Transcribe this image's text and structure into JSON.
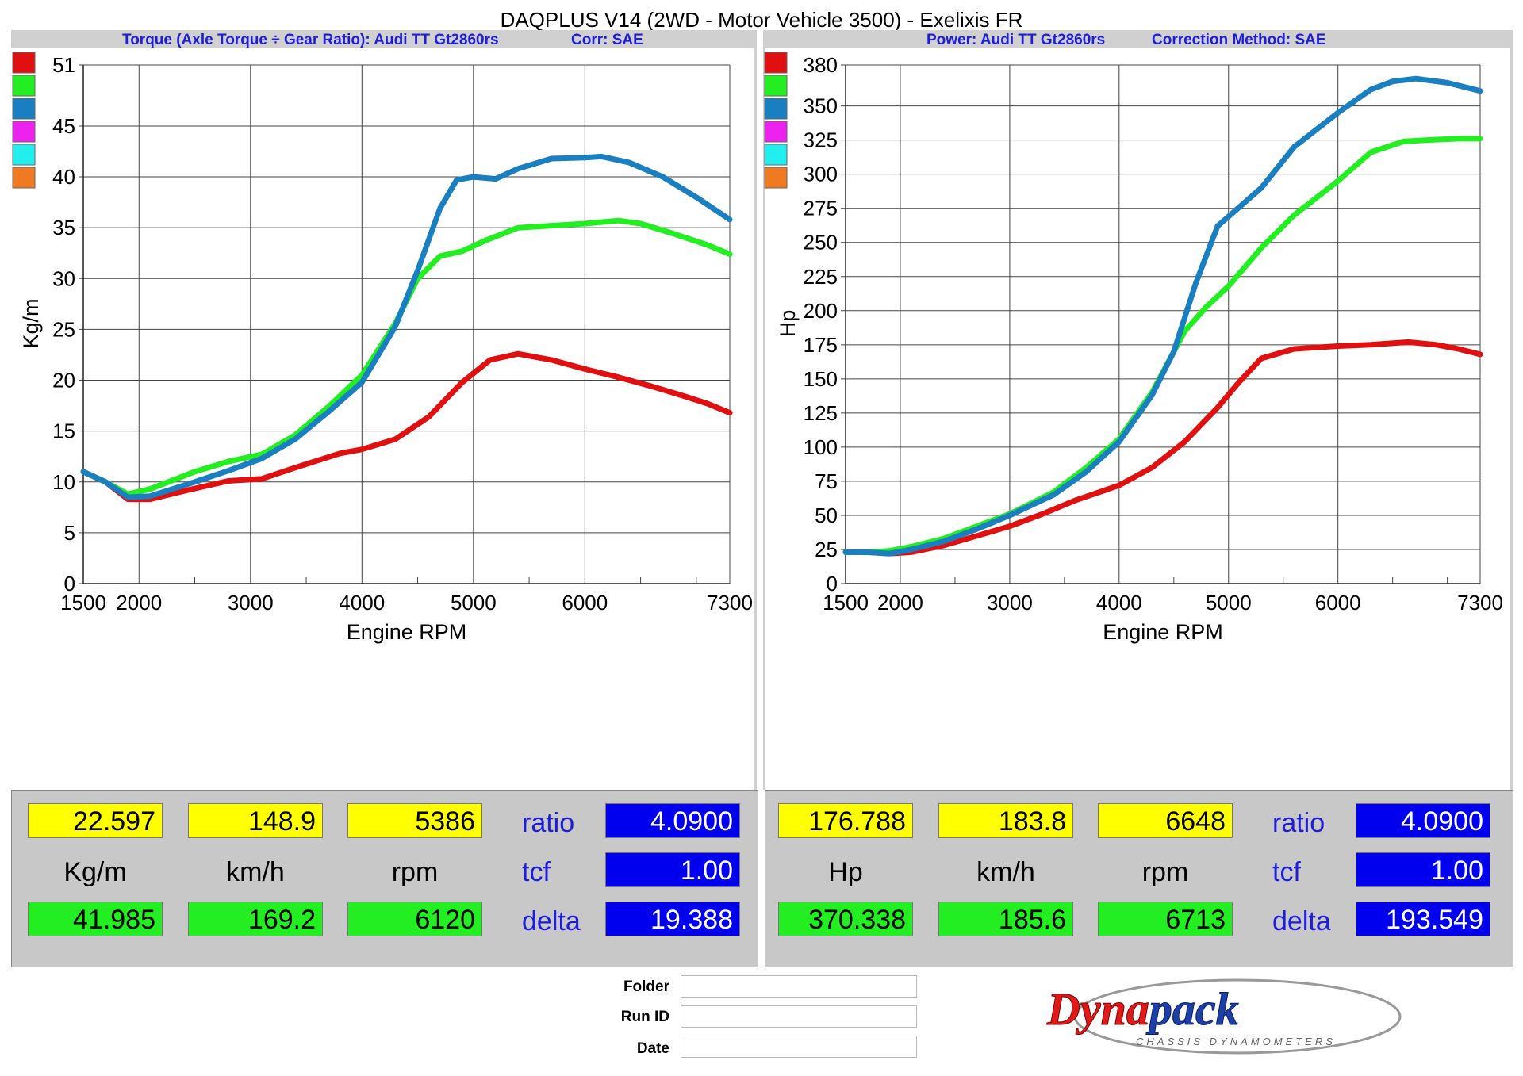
{
  "app_title": "DAQPLUS V14 (2WD - Motor Vehicle 3500) - Exelixis FR",
  "panels": {
    "left": {
      "header_a": "Torque (Axle Torque ÷ Gear Ratio): Audi TT Gt2860rs",
      "header_b": "Corr: SAE"
    },
    "right": {
      "header_a": "Power: Audi TT Gt2860rs",
      "header_b": "Correction Method: SAE"
    }
  },
  "colors": {
    "red": "#e01010",
    "green": "#22ee22",
    "blue": "#1a7fc0",
    "magenta": "#ee22ee",
    "cyan": "#22eeee",
    "orange": "#ee7a22"
  },
  "swatch_order": [
    "red",
    "green",
    "blue",
    "magenta",
    "cyan",
    "orange"
  ],
  "chart_data": [
    {
      "type": "line",
      "title": "Torque (Axle Torque ÷ Gear Ratio): Audi TT Gt2860rs",
      "xlabel": "Engine RPM",
      "ylabel": "Kg/m",
      "xlim": [
        1500,
        7300
      ],
      "ylim": [
        0,
        51
      ],
      "x_ticks": [
        1500,
        2000,
        3000,
        4000,
        5000,
        6000,
        7300
      ],
      "y_ticks": [
        0,
        5,
        10,
        15,
        20,
        25,
        30,
        35,
        40,
        45,
        51
      ],
      "grid": true,
      "series": [
        {
          "color": "red",
          "points": [
            [
              1500,
              11
            ],
            [
              1700,
              10
            ],
            [
              1900,
              8.3
            ],
            [
              2100,
              8.3
            ],
            [
              2400,
              9.1
            ],
            [
              2800,
              10.1
            ],
            [
              3100,
              10.3
            ],
            [
              3400,
              11.4
            ],
            [
              3800,
              12.8
            ],
            [
              4000,
              13.2
            ],
            [
              4300,
              14.2
            ],
            [
              4600,
              16.4
            ],
            [
              4900,
              19.8
            ],
            [
              5150,
              22
            ],
            [
              5400,
              22.6
            ],
            [
              5700,
              22
            ],
            [
              6000,
              21.1
            ],
            [
              6300,
              20.3
            ],
            [
              6600,
              19.4
            ],
            [
              6900,
              18.4
            ],
            [
              7100,
              17.7
            ],
            [
              7300,
              16.8
            ]
          ]
        },
        {
          "color": "green",
          "points": [
            [
              1500,
              11
            ],
            [
              1700,
              10
            ],
            [
              1900,
              8.8
            ],
            [
              2100,
              9.3
            ],
            [
              2500,
              11
            ],
            [
              2800,
              12
            ],
            [
              3100,
              12.7
            ],
            [
              3400,
              14.6
            ],
            [
              3700,
              17.4
            ],
            [
              4000,
              20.5
            ],
            [
              4300,
              25.6
            ],
            [
              4500,
              30
            ],
            [
              4700,
              32.2
            ],
            [
              4900,
              32.7
            ],
            [
              5100,
              33.7
            ],
            [
              5400,
              35
            ],
            [
              5700,
              35.2
            ],
            [
              6000,
              35.4
            ],
            [
              6300,
              35.7
            ],
            [
              6500,
              35.4
            ],
            [
              6800,
              34.4
            ],
            [
              7100,
              33.3
            ],
            [
              7300,
              32.4
            ]
          ]
        },
        {
          "color": "blue",
          "points": [
            [
              1500,
              11
            ],
            [
              1700,
              10
            ],
            [
              1900,
              8.5
            ],
            [
              2100,
              8.6
            ],
            [
              2500,
              10
            ],
            [
              2800,
              11.1
            ],
            [
              3100,
              12.3
            ],
            [
              3400,
              14.2
            ],
            [
              3700,
              16.9
            ],
            [
              4000,
              19.8
            ],
            [
              4300,
              25.3
            ],
            [
              4500,
              30.8
            ],
            [
              4700,
              36.9
            ],
            [
              4850,
              39.7
            ],
            [
              5000,
              40
            ],
            [
              5200,
              39.8
            ],
            [
              5400,
              40.8
            ],
            [
              5700,
              41.8
            ],
            [
              6000,
              41.9
            ],
            [
              6150,
              42
            ],
            [
              6400,
              41.4
            ],
            [
              6700,
              40
            ],
            [
              7000,
              38
            ],
            [
              7300,
              35.8
            ]
          ]
        }
      ]
    },
    {
      "type": "line",
      "title": "Power: Audi TT Gt2860rs",
      "xlabel": "Engine RPM",
      "ylabel": "Hp",
      "xlim": [
        1500,
        7300
      ],
      "ylim": [
        0,
        380
      ],
      "x_ticks": [
        1500,
        2000,
        3000,
        4000,
        5000,
        6000,
        7300
      ],
      "y_ticks": [
        0,
        25,
        50,
        75,
        100,
        125,
        150,
        175,
        200,
        225,
        250,
        275,
        300,
        325,
        350,
        380
      ],
      "grid": true,
      "series": [
        {
          "color": "red",
          "points": [
            [
              1500,
              23
            ],
            [
              1700,
              23
            ],
            [
              1900,
              22
            ],
            [
              2100,
              23
            ],
            [
              2400,
              28
            ],
            [
              2700,
              35
            ],
            [
              3000,
              42
            ],
            [
              3300,
              51
            ],
            [
              3600,
              61
            ],
            [
              4000,
              72
            ],
            [
              4300,
              85
            ],
            [
              4600,
              104
            ],
            [
              4900,
              129
            ],
            [
              5100,
              148
            ],
            [
              5300,
              165
            ],
            [
              5600,
              172
            ],
            [
              6000,
              174
            ],
            [
              6300,
              175
            ],
            [
              6648,
              177
            ],
            [
              6900,
              175
            ],
            [
              7100,
              172
            ],
            [
              7300,
              168
            ]
          ]
        },
        {
          "color": "green",
          "points": [
            [
              1500,
              23
            ],
            [
              1700,
              23
            ],
            [
              1900,
              24
            ],
            [
              2100,
              27
            ],
            [
              2400,
              33
            ],
            [
              2700,
              42
            ],
            [
              3000,
              51
            ],
            [
              3400,
              67
            ],
            [
              3700,
              85
            ],
            [
              4000,
              106
            ],
            [
              4300,
              140
            ],
            [
              4600,
              185
            ],
            [
              4800,
              203
            ],
            [
              5000,
              218
            ],
            [
              5300,
              246
            ],
            [
              5600,
              270
            ],
            [
              6000,
              295
            ],
            [
              6300,
              316
            ],
            [
              6600,
              324
            ],
            [
              6800,
              325
            ],
            [
              7100,
              326
            ],
            [
              7300,
              326
            ]
          ]
        },
        {
          "color": "blue",
          "points": [
            [
              1500,
              23
            ],
            [
              1700,
              23
            ],
            [
              1900,
              22
            ],
            [
              2100,
              25
            ],
            [
              2400,
              31
            ],
            [
              2700,
              40
            ],
            [
              3000,
              50
            ],
            [
              3400,
              65
            ],
            [
              3700,
              82
            ],
            [
              4000,
              104
            ],
            [
              4300,
              138
            ],
            [
              4500,
              170
            ],
            [
              4700,
              220
            ],
            [
              4900,
              262
            ],
            [
              5100,
              276
            ],
            [
              5300,
              290
            ],
            [
              5600,
              320
            ],
            [
              6000,
              345
            ],
            [
              6300,
              362
            ],
            [
              6500,
              368
            ],
            [
              6713,
              370
            ],
            [
              7000,
              367
            ],
            [
              7300,
              361
            ]
          ]
        }
      ]
    }
  ],
  "readouts": {
    "left": {
      "yellow": [
        "22.597",
        "148.9",
        "5386"
      ],
      "units": [
        "Kg/m",
        "km/h",
        "rpm"
      ],
      "green": [
        "41.985",
        "169.2",
        "6120"
      ],
      "labels": [
        "ratio",
        "tcf",
        "delta"
      ],
      "blue": [
        "4.0900",
        "1.00",
        "19.388"
      ]
    },
    "right": {
      "yellow": [
        "176.788",
        "183.8",
        "6648"
      ],
      "units": [
        "Hp",
        "km/h",
        "rpm"
      ],
      "green": [
        "370.338",
        "185.6",
        "6713"
      ],
      "labels": [
        "ratio",
        "tcf",
        "delta"
      ],
      "blue": [
        "4.0900",
        "1.00",
        "193.549"
      ]
    }
  },
  "footer": {
    "folder_label": "Folder",
    "run_id_label": "Run ID",
    "date_label": "Date"
  },
  "logo": {
    "brand": "Dynapack",
    "tagline": "CHASSIS DYNAMOMETERS"
  }
}
